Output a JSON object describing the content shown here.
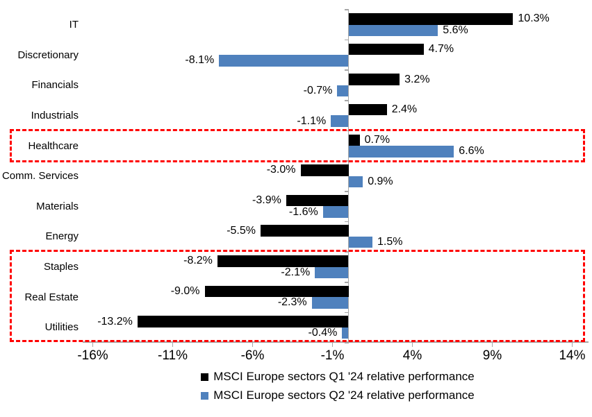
{
  "chart_data": {
    "type": "bar",
    "orientation": "horizontal",
    "title": "",
    "categories": [
      "IT",
      "Discretionary",
      "Financials",
      "Industrials",
      "Healthcare",
      "Comm. Services",
      "Materials",
      "Energy",
      "Staples",
      "Real Estate",
      "Utilities"
    ],
    "series": [
      {
        "name": "MSCI Europe sectors Q1 '24 relative performance",
        "color": "#000000",
        "values": [
          10.3,
          4.7,
          3.2,
          2.4,
          0.7,
          -3.0,
          -3.9,
          -5.5,
          -8.2,
          -9.0,
          -13.2
        ],
        "labels": [
          "10.3%",
          "4.7%",
          "3.2%",
          "2.4%",
          "0.7%",
          "-3.0%",
          "-3.9%",
          "-5.5%",
          "-8.2%",
          "-9.0%",
          "-13.2%"
        ]
      },
      {
        "name": "MSCI Europe sectors Q2 '24 relative performance",
        "color": "#4F81BD",
        "values": [
          5.6,
          -8.1,
          -0.7,
          -1.1,
          6.6,
          0.9,
          -1.6,
          1.5,
          -2.1,
          -2.3,
          -0.4
        ],
        "labels": [
          "5.6%",
          "-8.1%",
          "-0.7%",
          "-1.1%",
          "6.6%",
          "0.9%",
          "-1.6%",
          "1.5%",
          "-2.1%",
          "-2.3%",
          "-0.4%"
        ]
      }
    ],
    "x_axis": {
      "min": -16.6,
      "max": 15,
      "ticks": [
        -16,
        -11,
        -6,
        -1,
        4,
        9,
        14
      ],
      "tick_labels": [
        "-16%",
        "-11%",
        "-6%",
        "-1%",
        "4%",
        "9%",
        "14%"
      ],
      "axis_color": "#A6A6A6"
    },
    "value_label_color": "#000000",
    "grid": false,
    "legend_position": "bottom",
    "highlight_boxes": [
      {
        "categories": [
          "Healthcare"
        ],
        "color": "#FF0000",
        "style": "dashed"
      },
      {
        "categories": [
          "Staples",
          "Real Estate",
          "Utilities"
        ],
        "color": "#FF0000",
        "style": "dashed"
      }
    ]
  }
}
